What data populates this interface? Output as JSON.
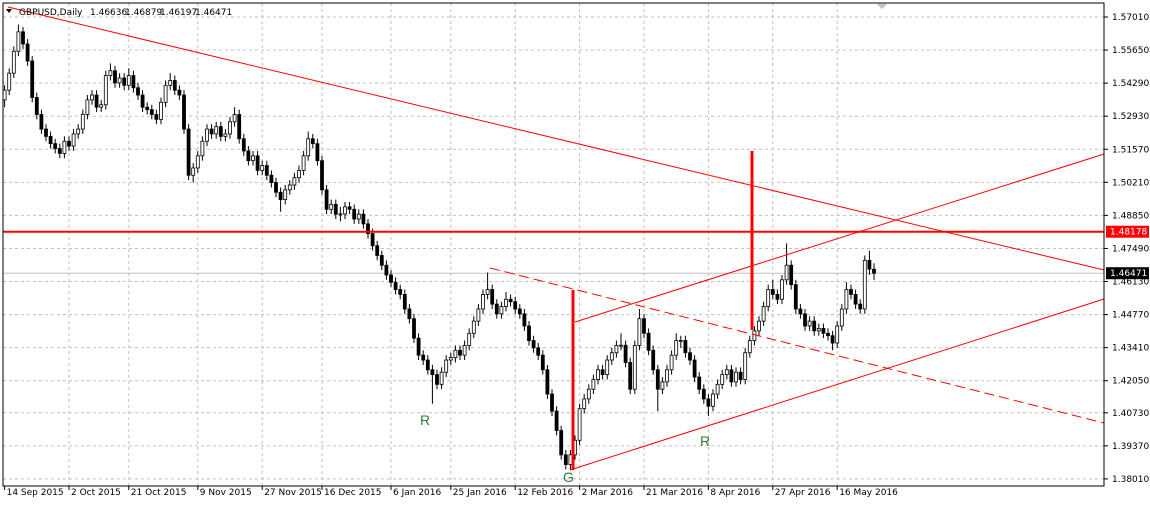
{
  "chart_data": {
    "type": "candlestick",
    "title": "GBPUSD,Daily",
    "ohlc": [
      [
        1.536,
        1.542,
        1.533,
        1.54
      ],
      [
        1.54,
        1.549,
        1.538,
        1.547
      ],
      [
        1.547,
        1.558,
        1.545,
        1.556
      ],
      [
        1.556,
        1.567,
        1.554,
        1.564
      ],
      [
        1.564,
        1.566,
        1.557,
        1.559
      ],
      [
        1.559,
        1.561,
        1.55,
        1.552
      ],
      [
        1.552,
        1.554,
        1.535,
        1.537
      ],
      [
        1.537,
        1.539,
        1.528,
        1.53
      ],
      [
        1.53,
        1.532,
        1.522,
        1.524
      ],
      [
        1.524,
        1.526,
        1.519,
        1.521
      ],
      [
        1.521,
        1.523,
        1.516,
        1.518
      ],
      [
        1.518,
        1.52,
        1.514,
        1.516
      ],
      [
        1.516,
        1.518,
        1.512,
        1.514
      ],
      [
        1.514,
        1.521,
        1.512,
        1.519
      ],
      [
        1.519,
        1.521,
        1.515,
        1.517
      ],
      [
        1.517,
        1.524,
        1.515,
        1.522
      ],
      [
        1.522,
        1.526,
        1.52,
        1.524
      ],
      [
        1.524,
        1.532,
        1.522,
        1.53
      ],
      [
        1.53,
        1.538,
        1.528,
        1.536
      ],
      [
        1.536,
        1.54,
        1.534,
        1.538
      ],
      [
        1.538,
        1.54,
        1.531,
        1.533
      ],
      [
        1.533,
        1.536,
        1.531,
        1.534
      ],
      [
        1.534,
        1.548,
        1.532,
        1.546
      ],
      [
        1.546,
        1.551,
        1.544,
        1.548
      ],
      [
        1.548,
        1.55,
        1.541,
        1.543
      ],
      [
        1.543,
        1.547,
        1.541,
        1.545
      ],
      [
        1.545,
        1.547,
        1.54,
        1.542
      ],
      [
        1.542,
        1.549,
        1.54,
        1.546
      ],
      [
        1.546,
        1.548,
        1.539,
        1.541
      ],
      [
        1.541,
        1.543,
        1.536,
        1.538
      ],
      [
        1.538,
        1.54,
        1.531,
        1.533
      ],
      [
        1.533,
        1.535,
        1.53,
        1.532
      ],
      [
        1.532,
        1.534,
        1.528,
        1.53
      ],
      [
        1.53,
        1.532,
        1.526,
        1.528
      ],
      [
        1.528,
        1.537,
        1.526,
        1.535
      ],
      [
        1.535,
        1.544,
        1.533,
        1.542
      ],
      [
        1.542,
        1.547,
        1.54,
        1.544
      ],
      [
        1.544,
        1.546,
        1.538,
        1.54
      ],
      [
        1.54,
        1.542,
        1.536,
        1.538
      ],
      [
        1.538,
        1.54,
        1.522,
        1.524
      ],
      [
        1.524,
        1.526,
        1.503,
        1.505
      ],
      [
        1.505,
        1.51,
        1.502,
        1.508
      ],
      [
        1.508,
        1.515,
        1.506,
        1.513
      ],
      [
        1.513,
        1.521,
        1.511,
        1.519
      ],
      [
        1.519,
        1.526,
        1.517,
        1.524
      ],
      [
        1.524,
        1.526,
        1.52,
        1.522
      ],
      [
        1.522,
        1.527,
        1.52,
        1.525
      ],
      [
        1.525,
        1.527,
        1.519,
        1.521
      ],
      [
        1.521,
        1.524,
        1.519,
        1.522
      ],
      [
        1.522,
        1.529,
        1.52,
        1.527
      ],
      [
        1.527,
        1.533,
        1.525,
        1.53
      ],
      [
        1.53,
        1.532,
        1.518,
        1.52
      ],
      [
        1.52,
        1.522,
        1.513,
        1.515
      ],
      [
        1.515,
        1.517,
        1.509,
        1.511
      ],
      [
        1.511,
        1.515,
        1.509,
        1.513
      ],
      [
        1.513,
        1.515,
        1.505,
        1.507
      ],
      [
        1.507,
        1.511,
        1.505,
        1.509
      ],
      [
        1.509,
        1.511,
        1.503,
        1.505
      ],
      [
        1.505,
        1.507,
        1.5,
        1.502
      ],
      [
        1.502,
        1.504,
        1.496,
        1.498
      ],
      [
        1.498,
        1.5,
        1.49,
        1.495
      ],
      [
        1.495,
        1.501,
        1.493,
        1.499
      ],
      [
        1.499,
        1.503,
        1.497,
        1.501
      ],
      [
        1.501,
        1.506,
        1.499,
        1.504
      ],
      [
        1.504,
        1.509,
        1.502,
        1.507
      ],
      [
        1.507,
        1.515,
        1.505,
        1.513
      ],
      [
        1.513,
        1.523,
        1.511,
        1.52
      ],
      [
        1.52,
        1.522,
        1.516,
        1.518
      ],
      [
        1.518,
        1.52,
        1.509,
        1.511
      ],
      [
        1.511,
        1.513,
        1.497,
        1.499
      ],
      [
        1.499,
        1.501,
        1.489,
        1.491
      ],
      [
        1.491,
        1.495,
        1.489,
        1.493
      ],
      [
        1.493,
        1.495,
        1.487,
        1.489
      ],
      [
        1.489,
        1.492,
        1.486,
        1.4891
      ],
      [
        1.4891,
        1.494,
        1.487,
        1.492
      ],
      [
        1.492,
        1.494,
        1.489,
        1.491
      ],
      [
        1.491,
        1.493,
        1.485,
        1.487
      ],
      [
        1.487,
        1.491,
        1.485,
        1.489
      ],
      [
        1.489,
        1.491,
        1.483,
        1.485
      ],
      [
        1.485,
        1.487,
        1.479,
        1.481
      ],
      [
        1.481,
        1.483,
        1.474,
        1.476
      ],
      [
        1.476,
        1.478,
        1.47,
        1.472
      ],
      [
        1.472,
        1.474,
        1.466,
        1.468
      ],
      [
        1.468,
        1.47,
        1.462,
        1.464
      ],
      [
        1.464,
        1.466,
        1.459,
        1.461
      ],
      [
        1.461,
        1.463,
        1.456,
        1.458
      ],
      [
        1.458,
        1.46,
        1.454,
        1.456
      ],
      [
        1.456,
        1.458,
        1.448,
        1.45
      ],
      [
        1.45,
        1.452,
        1.444,
        1.446
      ],
      [
        1.446,
        1.448,
        1.436,
        1.438
      ],
      [
        1.438,
        1.44,
        1.429,
        1.431
      ],
      [
        1.431,
        1.433,
        1.427,
        1.429
      ],
      [
        1.429,
        1.431,
        1.423,
        1.425
      ],
      [
        1.425,
        1.427,
        1.411,
        1.423
      ],
      [
        1.423,
        1.425,
        1.417,
        1.419
      ],
      [
        1.419,
        1.426,
        1.417,
        1.424
      ],
      [
        1.424,
        1.431,
        1.422,
        1.429
      ],
      [
        1.429,
        1.432,
        1.427,
        1.43
      ],
      [
        1.43,
        1.435,
        1.428,
        1.433
      ],
      [
        1.433,
        1.435,
        1.429,
        1.431
      ],
      [
        1.431,
        1.437,
        1.429,
        1.435
      ],
      [
        1.435,
        1.442,
        1.433,
        1.44
      ],
      [
        1.44,
        1.447,
        1.438,
        1.445
      ],
      [
        1.445,
        1.452,
        1.443,
        1.45
      ],
      [
        1.45,
        1.458,
        1.448,
        1.456
      ],
      [
        1.456,
        1.465,
        1.454,
        1.458
      ],
      [
        1.458,
        1.46,
        1.45,
        1.452
      ],
      [
        1.452,
        1.454,
        1.446,
        1.448
      ],
      [
        1.448,
        1.453,
        1.446,
        1.451
      ],
      [
        1.451,
        1.457,
        1.449,
        1.454
      ],
      [
        1.454,
        1.456,
        1.451,
        1.453
      ],
      [
        1.453,
        1.455,
        1.448,
        1.45
      ],
      [
        1.45,
        1.452,
        1.446,
        1.448
      ],
      [
        1.448,
        1.45,
        1.441,
        1.443
      ],
      [
        1.443,
        1.445,
        1.435,
        1.437
      ],
      [
        1.437,
        1.439,
        1.432,
        1.434
      ],
      [
        1.434,
        1.436,
        1.429,
        1.431
      ],
      [
        1.431,
        1.433,
        1.423,
        1.425
      ],
      [
        1.425,
        1.427,
        1.413,
        1.415
      ],
      [
        1.415,
        1.417,
        1.406,
        1.408
      ],
      [
        1.408,
        1.41,
        1.398,
        1.4
      ],
      [
        1.4,
        1.402,
        1.388,
        1.39
      ],
      [
        1.39,
        1.392,
        1.384,
        1.386
      ],
      [
        1.386,
        1.392,
        1.384,
        1.39
      ],
      [
        1.39,
        1.398,
        1.388,
        1.396
      ],
      [
        1.396,
        1.411,
        1.394,
        1.409
      ],
      [
        1.409,
        1.415,
        1.407,
        1.413
      ],
      [
        1.413,
        1.419,
        1.411,
        1.417
      ],
      [
        1.417,
        1.423,
        1.415,
        1.421
      ],
      [
        1.421,
        1.427,
        1.419,
        1.425
      ],
      [
        1.425,
        1.427,
        1.421,
        1.423
      ],
      [
        1.423,
        1.431,
        1.421,
        1.429
      ],
      [
        1.429,
        1.434,
        1.427,
        1.432
      ],
      [
        1.432,
        1.437,
        1.43,
        1.435
      ],
      [
        1.435,
        1.44,
        1.433,
        1.4351
      ],
      [
        1.4351,
        1.437,
        1.426,
        1.428
      ],
      [
        1.428,
        1.43,
        1.415,
        1.417
      ],
      [
        1.417,
        1.437,
        1.415,
        1.435
      ],
      [
        1.435,
        1.45,
        1.433,
        1.446
      ],
      [
        1.446,
        1.448,
        1.438,
        1.44
      ],
      [
        1.44,
        1.442,
        1.431,
        1.433
      ],
      [
        1.433,
        1.435,
        1.423,
        1.425
      ],
      [
        1.425,
        1.427,
        1.408,
        1.417
      ],
      [
        1.417,
        1.422,
        1.415,
        1.42
      ],
      [
        1.42,
        1.427,
        1.418,
        1.425
      ],
      [
        1.425,
        1.433,
        1.423,
        1.431
      ],
      [
        1.431,
        1.44,
        1.429,
        1.437
      ],
      [
        1.437,
        1.439,
        1.434,
        1.4371
      ],
      [
        1.4371,
        1.439,
        1.43,
        1.432
      ],
      [
        1.432,
        1.434,
        1.427,
        1.429
      ],
      [
        1.429,
        1.431,
        1.42,
        1.422
      ],
      [
        1.422,
        1.424,
        1.415,
        1.417
      ],
      [
        1.417,
        1.419,
        1.411,
        1.413
      ],
      [
        1.413,
        1.415,
        1.406,
        1.41
      ],
      [
        1.41,
        1.417,
        1.408,
        1.415
      ],
      [
        1.415,
        1.421,
        1.413,
        1.419
      ],
      [
        1.419,
        1.425,
        1.417,
        1.423
      ],
      [
        1.423,
        1.427,
        1.421,
        1.425
      ],
      [
        1.425,
        1.427,
        1.418,
        1.42
      ],
      [
        1.42,
        1.426,
        1.418,
        1.424
      ],
      [
        1.424,
        1.426,
        1.419,
        1.421
      ],
      [
        1.421,
        1.434,
        1.419,
        1.432
      ],
      [
        1.432,
        1.439,
        1.43,
        1.437
      ],
      [
        1.437,
        1.443,
        1.435,
        1.441
      ],
      [
        1.441,
        1.447,
        1.439,
        1.445
      ],
      [
        1.445,
        1.453,
        1.443,
        1.451
      ],
      [
        1.451,
        1.46,
        1.449,
        1.458
      ],
      [
        1.458,
        1.462,
        1.454,
        1.456
      ],
      [
        1.456,
        1.458,
        1.452,
        1.454
      ],
      [
        1.454,
        1.464,
        1.452,
        1.462
      ],
      [
        1.462,
        1.477,
        1.46,
        1.468
      ],
      [
        1.468,
        1.47,
        1.458,
        1.46
      ],
      [
        1.46,
        1.462,
        1.448,
        1.45
      ],
      [
        1.45,
        1.452,
        1.446,
        1.448
      ],
      [
        1.448,
        1.45,
        1.441,
        1.443
      ],
      [
        1.443,
        1.447,
        1.441,
        1.445
      ],
      [
        1.445,
        1.447,
        1.439,
        1.441
      ],
      [
        1.441,
        1.444,
        1.439,
        1.442
      ],
      [
        1.442,
        1.444,
        1.438,
        1.44
      ],
      [
        1.44,
        1.442,
        1.437,
        1.439
      ],
      [
        1.439,
        1.441,
        1.433,
        1.436
      ],
      [
        1.436,
        1.445,
        1.434,
        1.443
      ],
      [
        1.443,
        1.452,
        1.441,
        1.45
      ],
      [
        1.45,
        1.461,
        1.448,
        1.458
      ],
      [
        1.458,
        1.46,
        1.454,
        1.456
      ],
      [
        1.456,
        1.458,
        1.45,
        1.452
      ],
      [
        1.452,
        1.454,
        1.448,
        1.45
      ],
      [
        1.45,
        1.472,
        1.448,
        1.47
      ],
      [
        1.47,
        1.474,
        1.464,
        1.4664
      ],
      [
        1.46636,
        1.46879,
        1.46197,
        1.46471
      ]
    ],
    "xlim": [
      -1,
      239
    ],
    "xticks": [
      {
        "value": 0,
        "label": "14 Sep 2015"
      },
      {
        "value": 14,
        "label": "2 Oct 2015"
      },
      {
        "value": 27,
        "label": "21 Oct 2015"
      },
      {
        "value": 42,
        "label": "9 Nov 2015"
      },
      {
        "value": 56,
        "label": "27 Nov 2015"
      },
      {
        "value": 69,
        "label": "16 Dec 2015"
      },
      {
        "value": 84,
        "label": "6 Jan 2016"
      },
      {
        "value": 97,
        "label": "25 Jan 2016"
      },
      {
        "value": 111,
        "label": "12 Feb 2016"
      },
      {
        "value": 125,
        "label": "2 Mar 2016"
      },
      {
        "value": 139,
        "label": "21 Mar 2016"
      },
      {
        "value": 153,
        "label": "8 Apr 2016"
      },
      {
        "value": 167,
        "label": "27 Apr 2016"
      },
      {
        "value": 181,
        "label": "16 May 2016"
      }
    ],
    "ylim": [
      1.3776,
      1.5738
    ],
    "yticks": [
      {
        "value": 1.5701,
        "label": "1.57010"
      },
      {
        "value": 1.5565,
        "label": "1.55650"
      },
      {
        "value": 1.5429,
        "label": "1.54290"
      },
      {
        "value": 1.5293,
        "label": "1.52930"
      },
      {
        "value": 1.5157,
        "label": "1.51570"
      },
      {
        "value": 1.5021,
        "label": "1.50210"
      },
      {
        "value": 1.4885,
        "label": "1.48850"
      },
      {
        "value": 1.4749,
        "label": "1.47490"
      },
      {
        "value": 1.4613,
        "label": "1.46130"
      },
      {
        "value": 1.4477,
        "label": "1.44770"
      },
      {
        "value": 1.4341,
        "label": "1.43410"
      },
      {
        "value": 1.4205,
        "label": "1.42050"
      },
      {
        "value": 1.4073,
        "label": "1.40730"
      },
      {
        "value": 1.3937,
        "label": "1.39370"
      },
      {
        "value": 1.3801,
        "label": "1.38010"
      }
    ],
    "grid": true,
    "hline": 1.48178,
    "hline_color": "#ff0000",
    "up_color": "#ffffff",
    "down_color": "#000000",
    "annotations": [
      "R",
      "G",
      "R"
    ]
  }
}
